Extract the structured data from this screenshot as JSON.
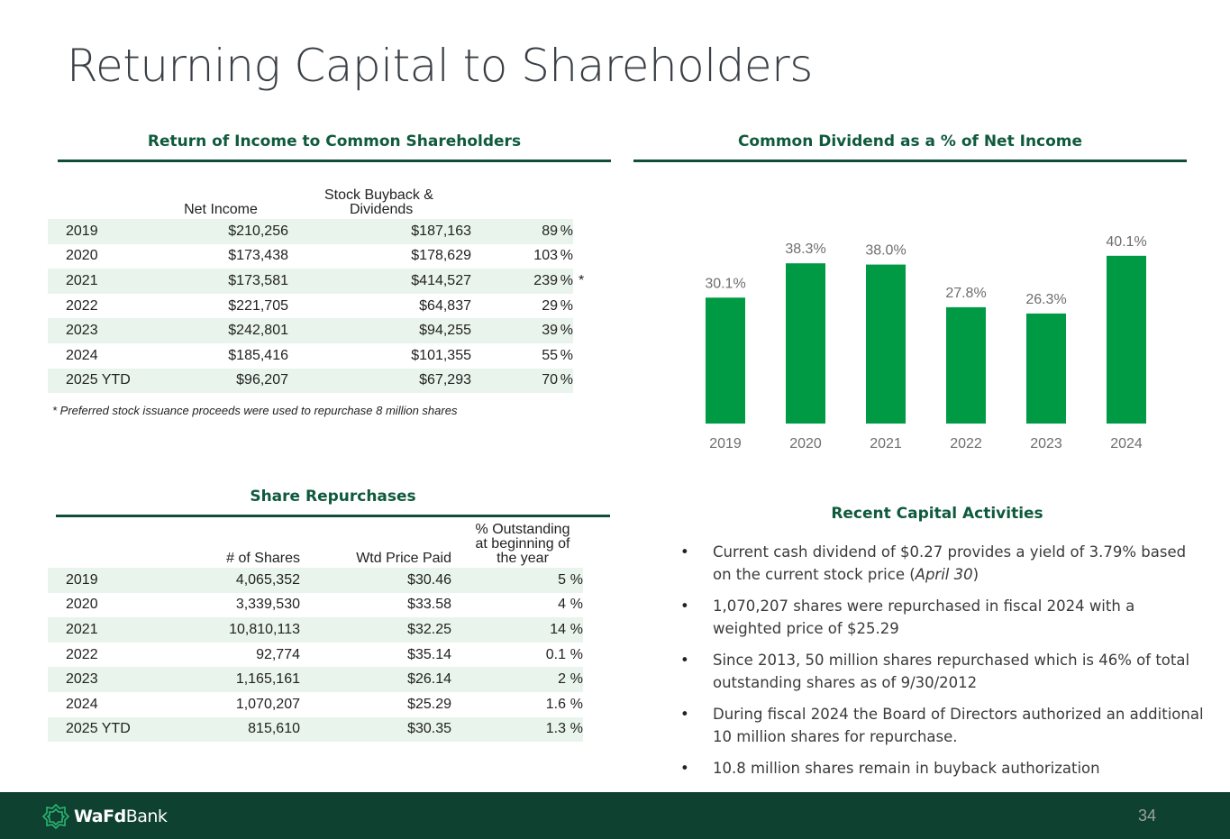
{
  "page": {
    "title": "Returning Capital to Shareholders",
    "page_number": "34"
  },
  "return_of_income": {
    "heading": "Return of Income to Common Shareholders",
    "col_net_income": "Net Income",
    "col_buyback_line1": "Stock Buyback &",
    "col_buyback_line2": "Dividends",
    "rows": [
      {
        "year": "2019",
        "net_income": "$210,256",
        "buyback": "$187,163",
        "pct": "89",
        "unit": "%",
        "star": ""
      },
      {
        "year": "2020",
        "net_income": "$173,438",
        "buyback": "$178,629",
        "pct": "103",
        "unit": "%",
        "star": ""
      },
      {
        "year": "2021",
        "net_income": "$173,581",
        "buyback": "$414,527",
        "pct": "239",
        "unit": "%",
        "star": "*"
      },
      {
        "year": "2022",
        "net_income": "$221,705",
        "buyback": "$64,837",
        "pct": "29",
        "unit": "%",
        "star": ""
      },
      {
        "year": "2023",
        "net_income": "$242,801",
        "buyback": "$94,255",
        "pct": "39",
        "unit": "%",
        "star": ""
      },
      {
        "year": "2024",
        "net_income": "$185,416",
        "buyback": "$101,355",
        "pct": "55",
        "unit": "%",
        "star": ""
      },
      {
        "year": "2025 YTD",
        "net_income": "$96,207",
        "buyback": "$67,293",
        "pct": "70",
        "unit": "%",
        "star": ""
      }
    ],
    "footnote": "* Preferred stock issuance proceeds were used to repurchase 8 million shares"
  },
  "dividend_chart": {
    "heading": "Common Dividend as a % of Net Income"
  },
  "chart_data": {
    "type": "bar",
    "title": "Common Dividend as a % of Net Income",
    "categories": [
      "2019",
      "2020",
      "2021",
      "2022",
      "2023",
      "2024"
    ],
    "values": [
      30.1,
      38.3,
      38.0,
      27.8,
      26.3,
      40.1
    ],
    "labels": [
      "30.1%",
      "38.3%",
      "38.0%",
      "27.8%",
      "26.3%",
      "40.1%"
    ],
    "xlabel": "",
    "ylabel": "",
    "ylim": [
      0,
      42
    ],
    "color": "#009a44",
    "grid": false
  },
  "share_repurchases": {
    "heading": "Share Repurchases",
    "col_shares": "# of Shares",
    "col_price": "Wtd Price Paid",
    "col_pct_line1": "% Outstanding",
    "col_pct_line2": "at beginning of",
    "col_pct_line3": "the year",
    "rows": [
      {
        "year": "2019",
        "shares": "4,065,352",
        "price": "$30.46",
        "pct": "5",
        "unit": "%"
      },
      {
        "year": "2020",
        "shares": "3,339,530",
        "price": "$33.58",
        "pct": "4",
        "unit": "%"
      },
      {
        "year": "2021",
        "shares": "10,810,113",
        "price": "$32.25",
        "pct": "14",
        "unit": "%"
      },
      {
        "year": "2022",
        "shares": "92,774",
        "price": "$35.14",
        "pct": "0.1",
        "unit": "%"
      },
      {
        "year": "2023",
        "shares": "1,165,161",
        "price": "$26.14",
        "pct": "2",
        "unit": "%"
      },
      {
        "year": "2024",
        "shares": "1,070,207",
        "price": "$25.29",
        "pct": "1.6",
        "unit": "%"
      },
      {
        "year": "2025 YTD",
        "shares": "815,610",
        "price": "$30.35",
        "pct": "1.3",
        "unit": "%"
      }
    ]
  },
  "recent_activities": {
    "heading": "Recent Capital Activities",
    "bullet_char": "•",
    "b1_text": "Current cash dividend of $0.27 provides a yield of 3.79% based on the current stock price (",
    "b1_italic": "April 30",
    "b1_close": ")",
    "b2": "1,070,207 shares were repurchased in fiscal 2024 with a weighted price of $25.29",
    "b3": "Since 2013, 50 million shares repurchased which is 46% of total outstanding shares as of 9/30/2012",
    "b4": "During fiscal 2024 the Board of Directors authorized an additional 10 million shares for repurchase.",
    "b5": "10.8 million shares remain in buyback authorization"
  },
  "footer": {
    "logo_bold": "WaFd",
    "logo_light": "Bank",
    "brand_color": "#0f4130",
    "accent_color": "#009a44"
  }
}
